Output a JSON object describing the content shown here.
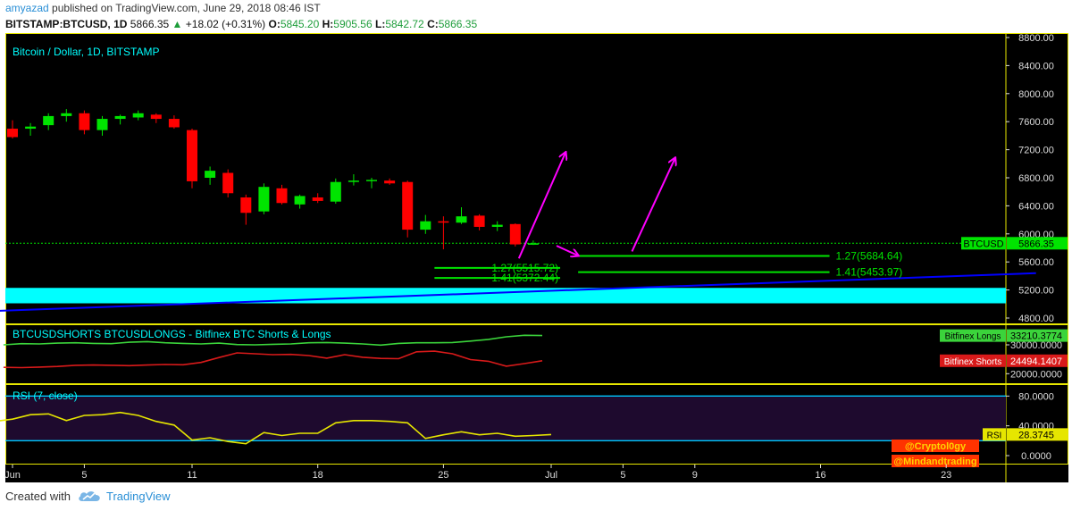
{
  "header": {
    "publisher": "amyazad",
    "published_text": "published on TradingView.com, June 29, 2018 08:46 IST",
    "symbol": "BITSTAMP:BTCUSD, 1D",
    "last": "5866.35",
    "change": "+18.02 (+0.31%)",
    "o_label": "O:",
    "o": "5845.20",
    "h_label": "H:",
    "h": "5905.56",
    "l_label": "L:",
    "l": "5842.72",
    "c_label": "C:",
    "c": "5866.35"
  },
  "footer": {
    "created_with": "Created with",
    "brand": "TradingView"
  },
  "colors": {
    "bull": "#00e400",
    "bear": "#ff0000",
    "panel_bg": "#000000",
    "border": "#e6e600",
    "axis_text": "#dddddd",
    "support_zone": "#00ffff",
    "trendline": "#0000ff",
    "arrow": "#ff00ff",
    "fib": "#00e400",
    "longs": "#3bd43b",
    "shorts": "#d91a1a",
    "rsi": "#e6e600",
    "rsi_band": "#1e0a2e",
    "rsi_level": "#00c8ff"
  },
  "chart_data": [
    {
      "type": "candlestick",
      "title": "Bitcoin / Dollar, 1D, BITSTAMP",
      "ylim": [
        4800,
        8800
      ],
      "y_ticks": [
        "8800.00",
        "8400.00",
        "8000.00",
        "7600.00",
        "7200.00",
        "6800.00",
        "6400.00",
        "6000.00",
        "5600.00",
        "5200.00",
        "4800.00"
      ],
      "x_ticks": [
        {
          "label": "Jun",
          "day": 1
        },
        {
          "label": "5",
          "day": 5
        },
        {
          "label": "11",
          "day": 11
        },
        {
          "label": "18",
          "day": 18
        },
        {
          "label": "25",
          "day": 25
        },
        {
          "label": "Jul",
          "day": 31
        },
        {
          "label": "5",
          "day": 35
        },
        {
          "label": "9",
          "day": 39
        },
        {
          "label": "16",
          "day": 46
        },
        {
          "label": "23",
          "day": 53
        }
      ],
      "candles": [
        {
          "day": 1,
          "o": 7500,
          "h": 7620,
          "l": 7360,
          "c": 7380
        },
        {
          "day": 2,
          "o": 7500,
          "h": 7580,
          "l": 7400,
          "c": 7530
        },
        {
          "day": 3,
          "o": 7550,
          "h": 7720,
          "l": 7480,
          "c": 7680
        },
        {
          "day": 4,
          "o": 7680,
          "h": 7780,
          "l": 7600,
          "c": 7720
        },
        {
          "day": 5,
          "o": 7720,
          "h": 7760,
          "l": 7420,
          "c": 7480
        },
        {
          "day": 6,
          "o": 7480,
          "h": 7680,
          "l": 7400,
          "c": 7640
        },
        {
          "day": 7,
          "o": 7640,
          "h": 7700,
          "l": 7560,
          "c": 7680
        },
        {
          "day": 8,
          "o": 7660,
          "h": 7760,
          "l": 7620,
          "c": 7720
        },
        {
          "day": 9,
          "o": 7700,
          "h": 7720,
          "l": 7580,
          "c": 7640
        },
        {
          "day": 10,
          "o": 7640,
          "h": 7690,
          "l": 7500,
          "c": 7520
        },
        {
          "day": 11,
          "o": 7480,
          "h": 7500,
          "l": 6650,
          "c": 6750
        },
        {
          "day": 12,
          "o": 6800,
          "h": 6960,
          "l": 6700,
          "c": 6900
        },
        {
          "day": 13,
          "o": 6870,
          "h": 6920,
          "l": 6520,
          "c": 6580
        },
        {
          "day": 14,
          "o": 6520,
          "h": 6560,
          "l": 6130,
          "c": 6300
        },
        {
          "day": 15,
          "o": 6320,
          "h": 6720,
          "l": 6280,
          "c": 6670
        },
        {
          "day": 16,
          "o": 6650,
          "h": 6700,
          "l": 6420,
          "c": 6440
        },
        {
          "day": 17,
          "o": 6420,
          "h": 6560,
          "l": 6360,
          "c": 6540
        },
        {
          "day": 18,
          "o": 6520,
          "h": 6580,
          "l": 6440,
          "c": 6470
        },
        {
          "day": 19,
          "o": 6460,
          "h": 6790,
          "l": 6430,
          "c": 6740
        },
        {
          "day": 20,
          "o": 6740,
          "h": 6850,
          "l": 6690,
          "c": 6760
        },
        {
          "day": 21,
          "o": 6760,
          "h": 6800,
          "l": 6650,
          "c": 6770
        },
        {
          "day": 22,
          "o": 6760,
          "h": 6790,
          "l": 6700,
          "c": 6720
        },
        {
          "day": 23,
          "o": 6740,
          "h": 6760,
          "l": 5950,
          "c": 6060
        },
        {
          "day": 24,
          "o": 6060,
          "h": 6270,
          "l": 6000,
          "c": 6180
        },
        {
          "day": 25,
          "o": 6180,
          "h": 6250,
          "l": 5780,
          "c": 6160
        },
        {
          "day": 26,
          "o": 6160,
          "h": 6380,
          "l": 6140,
          "c": 6250
        },
        {
          "day": 27,
          "o": 6260,
          "h": 6280,
          "l": 6050,
          "c": 6100
        },
        {
          "day": 28,
          "o": 6100,
          "h": 6180,
          "l": 6040,
          "c": 6130
        },
        {
          "day": 29,
          "o": 6140,
          "h": 6150,
          "l": 5820,
          "c": 5850
        },
        {
          "day": 30,
          "o": 5845.2,
          "h": 5905.56,
          "l": 5842.72,
          "c": 5866.35
        }
      ],
      "last_price": {
        "label": "BTCUSD",
        "value": "5866.35",
        "y": 5866.35
      },
      "fib_levels": [
        {
          "label": "1.27(5515.72)",
          "y": 5515.72,
          "day_from": 24.5,
          "day_to": 31.5
        },
        {
          "label": "1.41(5372.44)",
          "y": 5372.44,
          "day_from": 24.5,
          "day_to": 31.5
        },
        {
          "label": "1.27(5684.64)",
          "y": 5684.64,
          "day_from": 32.5,
          "day_to": 46.5
        },
        {
          "label": "1.41(5453.97)",
          "y": 5453.97,
          "day_from": 32.5,
          "day_to": 46.5
        }
      ],
      "support_zone": {
        "y_from": 5010,
        "y_to": 5230
      },
      "trendline": {
        "day_from": 0,
        "y_from": 4900,
        "day_to": 58,
        "y_to": 5440
      },
      "arrows": [
        {
          "day_from": 29.2,
          "y_from": 5650,
          "day_to": 31.8,
          "y_to": 7160
        },
        {
          "day_from": 31.3,
          "y_from": 5830,
          "day_to": 32.5,
          "y_to": 5690
        },
        {
          "day_from": 35.5,
          "y_from": 5750,
          "day_to": 37.9,
          "y_to": 7080
        }
      ]
    },
    {
      "type": "line",
      "title": "BTCUSDSHORTS BTCUSDLONGS - Bitfinex BTC Shorts & Longs",
      "ylim": [
        17000,
        36500
      ],
      "y_ticks": [
        "30000.0000",
        "20000.0000"
      ],
      "series": [
        {
          "name": "Bitfinex Longs",
          "value": "33210.3774",
          "last": 33210.38,
          "values": [
            30000,
            30400,
            30300,
            30600,
            30700,
            30500,
            30400,
            30900,
            31100,
            30700,
            30500,
            30300,
            30600,
            30100,
            30000,
            30200,
            30300,
            30700,
            30800,
            30600,
            30300,
            29900,
            30500,
            30700,
            30700,
            30800,
            31300,
            31900,
            32800,
            33300,
            33210
          ]
        },
        {
          "name": "Bitfinex Shorts",
          "value": "24494.1407",
          "last": 24494.14,
          "values": [
            22200,
            22100,
            22300,
            22500,
            22900,
            23000,
            22900,
            22800,
            23000,
            23200,
            23100,
            23900,
            25600,
            27200,
            26900,
            26600,
            26700,
            26300,
            25400,
            26600,
            25700,
            25300,
            25200,
            27600,
            27800,
            26900,
            24900,
            24300,
            22600,
            23500,
            24494
          ]
        }
      ]
    },
    {
      "type": "line",
      "title": "RSI (7, close)",
      "ylim": [
        -12,
        96
      ],
      "y_ticks": [
        "80.0000",
        "40.0000",
        "0.0000"
      ],
      "levels": [
        80,
        20
      ],
      "series": [
        {
          "name": "RSI",
          "value": "28.3745",
          "last": 28.3745,
          "values": [
            46,
            49,
            55,
            56,
            47,
            54,
            55,
            58,
            54,
            46,
            41,
            21,
            24,
            19,
            16,
            31,
            27,
            30,
            30,
            44,
            47,
            47,
            46,
            44,
            23,
            28,
            32,
            28,
            30,
            26,
            27,
            28.37
          ]
        }
      ]
    }
  ],
  "watermarks": [
    "@Cryptol0gy",
    "@Mindandtrading"
  ]
}
